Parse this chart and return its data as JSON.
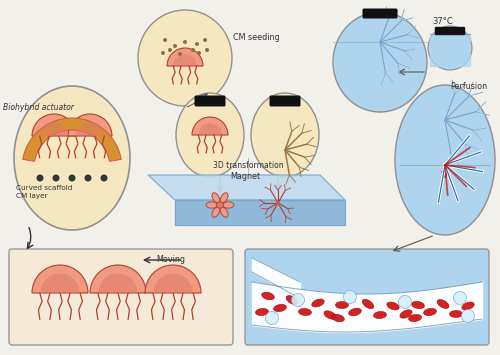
{
  "bg_color": "#f2f0eb",
  "labels": {
    "biohybrid": "Biohybrid actuator",
    "cm_seeding": "CM seeding",
    "magnet": "Magnet",
    "transform3d": "3D transformation",
    "temp": "37°C",
    "perfusion": "Perfusion",
    "curved": "Curved scaffold\nCM layer",
    "moving": "Moving"
  },
  "colors": {
    "flesh_light": "#f09a82",
    "flesh_med": "#e07868",
    "flesh_dark": "#c85848",
    "flesh_outline": "#b04030",
    "cream_bg": "#f5e8c0",
    "cream_dark": "#e0c878",
    "orange_stripe": "#d89030",
    "blue_light": "#aed4ee",
    "blue_med": "#78a8d0",
    "blue_dark": "#3870a0",
    "red_cell": "#cc1818",
    "white_cell": "#d8eef8",
    "bg_panel_cream": "#f5ead8",
    "platform_top": "#c0daf0",
    "platform_side1": "#90b8d8",
    "platform_side2": "#a8c8e0",
    "black": "#111111",
    "gray_outline": "#909090",
    "dark_gray": "#444444",
    "brown_branch": "#9a7848"
  }
}
